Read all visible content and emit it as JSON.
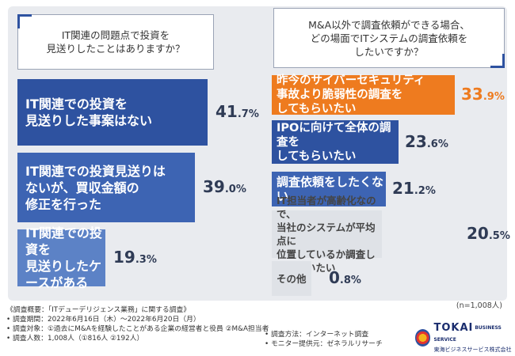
{
  "left_chart": {
    "question": "IT関連の問題点で投資を\n見送りしたことはありますか？",
    "items": [
      {
        "label": "IT関連での投資を\n見送りした事案はない",
        "int": "41",
        "dec": ".7",
        "unit": "%"
      },
      {
        "label": "IT関連での投資見送りは\nないが、買収金額の\n修正を行った",
        "int": "39",
        "dec": ".0",
        "unit": "%"
      },
      {
        "label": "IT関連での投資を\n見送りしたケースがある",
        "int": "19",
        "dec": ".3",
        "unit": "%"
      }
    ]
  },
  "right_chart": {
    "question": "M&A以外で調査依頼ができる場合、\nどの場面でITシステムの調査依頼を\nしたいですか？",
    "items": [
      {
        "label": "昨今のサイバーセキュリティ\n事故より脆弱性の調査を\nしてもらいたい",
        "int": "33",
        "dec": ".9",
        "unit": "%"
      },
      {
        "label": "IPOに向けて全体の調査を\nしてもらいたい",
        "int": "23",
        "dec": ".6",
        "unit": "%"
      },
      {
        "label": "調査依頼をしたくない",
        "int": "21",
        "dec": ".2",
        "unit": "%"
      },
      {
        "label": "IT担当者が高齢化なので、\n当社のシステムが平均点に\n位置しているか調査してもらいたい",
        "int": "20",
        "dec": ".5",
        "unit": "%"
      },
      {
        "label": "その他",
        "int": "0",
        "dec": ".8",
        "unit": "%"
      }
    ],
    "n_note": "(n=1,008人)"
  },
  "chart_data": [
    {
      "type": "bar",
      "title": "IT関連の問題点で投資を見送りしたことはありますか？",
      "categories": [
        "IT関連での投資を見送りした事案はない",
        "IT関連での投資見送りはないが、買収金額の修正を行った",
        "IT関連での投資を見送りしたケースがある"
      ],
      "values": [
        41.7,
        39.0,
        19.3
      ],
      "unit": "%"
    },
    {
      "type": "bar",
      "title": "M&A以外で調査依頼ができる場合、どの場面でITシステムの調査依頼をしたいですか？",
      "categories": [
        "昨今のサイバーセキュリティ事故より脆弱性の調査をしてもらいたい",
        "IPOに向けて全体の調査をしてもらいたい",
        "調査依頼をしたくない",
        "IT担当者が高齢化なので、当社のシステムが平均点に位置しているか調査してもらいたい",
        "その他"
      ],
      "values": [
        33.9,
        23.6,
        21.2,
        20.5,
        0.8
      ],
      "unit": "%"
    }
  ],
  "colors": {
    "blue_dark": "#2e52a0",
    "blue_mid": "#3d64b3",
    "blue_light": "#5c82c6",
    "orange": "#ee7b1f",
    "gray": "#dfe2e7"
  },
  "footer": {
    "line1": "《調査概要：「ITデューデリジェンス業務」に関する調査》",
    "line2": "• 調査期間：2022年6月16日（木）〜2022年6月20日（月）",
    "line3": "• 調査対象：①過去にM&Aを経験したことがある企業の経営者と役員 ②M&A担当者",
    "line4": "• 調査人数：1,008人（①816人 ②192人）",
    "right1": "• 調査方法：インターネット調査",
    "right2": "• モニター提供元：ゼネラルリサーチ"
  },
  "logo": {
    "name": "TOKAI",
    "tagline": "BUSINESS SERVICE",
    "company": "東海ビジネスサービス株式会社"
  }
}
